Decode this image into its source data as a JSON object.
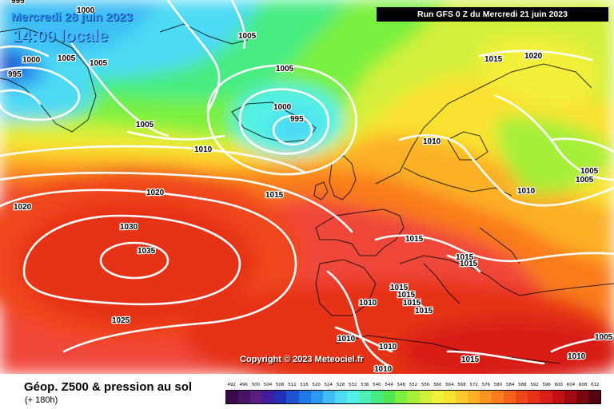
{
  "header": {
    "date": "Mercredi 28 juin 2023",
    "time": "14:00 locale",
    "run": "Run GFS 0 Z du Mercredi 21 juin 2023"
  },
  "copyright": "Copyright © 2023 Meteociel.fr",
  "legend": {
    "title": "Géop. Z500 & pression au sol",
    "subtitle": "(+ 180h)",
    "scale_values": [
      "492",
      "496",
      "500",
      "504",
      "508",
      "512",
      "516",
      "520",
      "524",
      "528",
      "532",
      "536",
      "540",
      "544",
      "548",
      "552",
      "556",
      "560",
      "564",
      "568",
      "572",
      "576",
      "580",
      "584",
      "588",
      "592",
      "596",
      "600",
      "604",
      "608",
      "612"
    ],
    "scale_colors": [
      "#3a0a4a",
      "#4a1466",
      "#5a1e82",
      "#3f1e9e",
      "#2232b8",
      "#1e54d2",
      "#1e78e6",
      "#2a9af0",
      "#3ebef4",
      "#4edaf4",
      "#52f0e6",
      "#4cf0b6",
      "#46ec82",
      "#52e652",
      "#7af040",
      "#a6f03a",
      "#d2f03a",
      "#f2f03a",
      "#fae232",
      "#fcca2c",
      "#fcb026",
      "#fc9622",
      "#fa7c1e",
      "#f6621c",
      "#f0461a",
      "#e63018",
      "#d81e16",
      "#c01014",
      "#a00a12",
      "#7a0610",
      "#560410"
    ]
  },
  "isobars": [
    {
      "label": "1000",
      "note": "top-left"
    },
    {
      "label": "995",
      "note": "top-left"
    },
    {
      "label": "1005",
      "note": "north atlantic"
    },
    {
      "label": "1005",
      "note": "greenland"
    },
    {
      "label": "1005",
      "note": "greenland"
    },
    {
      "label": "1005",
      "note": "low ring"
    },
    {
      "label": "1000",
      "note": "low ring"
    },
    {
      "label": "995",
      "note": "low center"
    },
    {
      "label": "1005",
      "note": "west"
    },
    {
      "label": "1010",
      "note": "atlantic"
    },
    {
      "label": "1015",
      "note": "uk"
    },
    {
      "label": "1020",
      "note": "atlantic"
    },
    {
      "label": "1020",
      "note": "far west"
    },
    {
      "label": "1030",
      "note": "azores"
    },
    {
      "label": "1035",
      "note": "azores high"
    },
    {
      "label": "1025",
      "note": "south atlantic"
    },
    {
      "label": "1015",
      "note": "scandinavia"
    },
    {
      "label": "1020",
      "note": "scandinavia"
    },
    {
      "label": "1010",
      "note": "norway"
    },
    {
      "label": "1010",
      "note": "baltic"
    },
    {
      "label": "1005",
      "note": "russia"
    },
    {
      "label": "1005",
      "note": "russia"
    },
    {
      "label": "1015",
      "note": "france"
    },
    {
      "label": "1015",
      "note": "italy"
    },
    {
      "label": "1015",
      "note": "italy"
    },
    {
      "label": "1010",
      "note": "iberia"
    },
    {
      "label": "1015",
      "note": "med"
    },
    {
      "label": "1015",
      "note": "med"
    },
    {
      "label": "1015",
      "note": "med"
    },
    {
      "label": "1015",
      "note": "med"
    },
    {
      "label": "1010",
      "note": "africa"
    },
    {
      "label": "1010",
      "note": "africa"
    },
    {
      "label": "1010",
      "note": "africa"
    },
    {
      "label": "1015",
      "note": "africa"
    },
    {
      "label": "1010",
      "note": "east med"
    },
    {
      "label": "1005",
      "note": "far east"
    },
    {
      "label": "995",
      "note": "top edge"
    },
    {
      "label": "1000",
      "note": "top edge"
    }
  ]
}
